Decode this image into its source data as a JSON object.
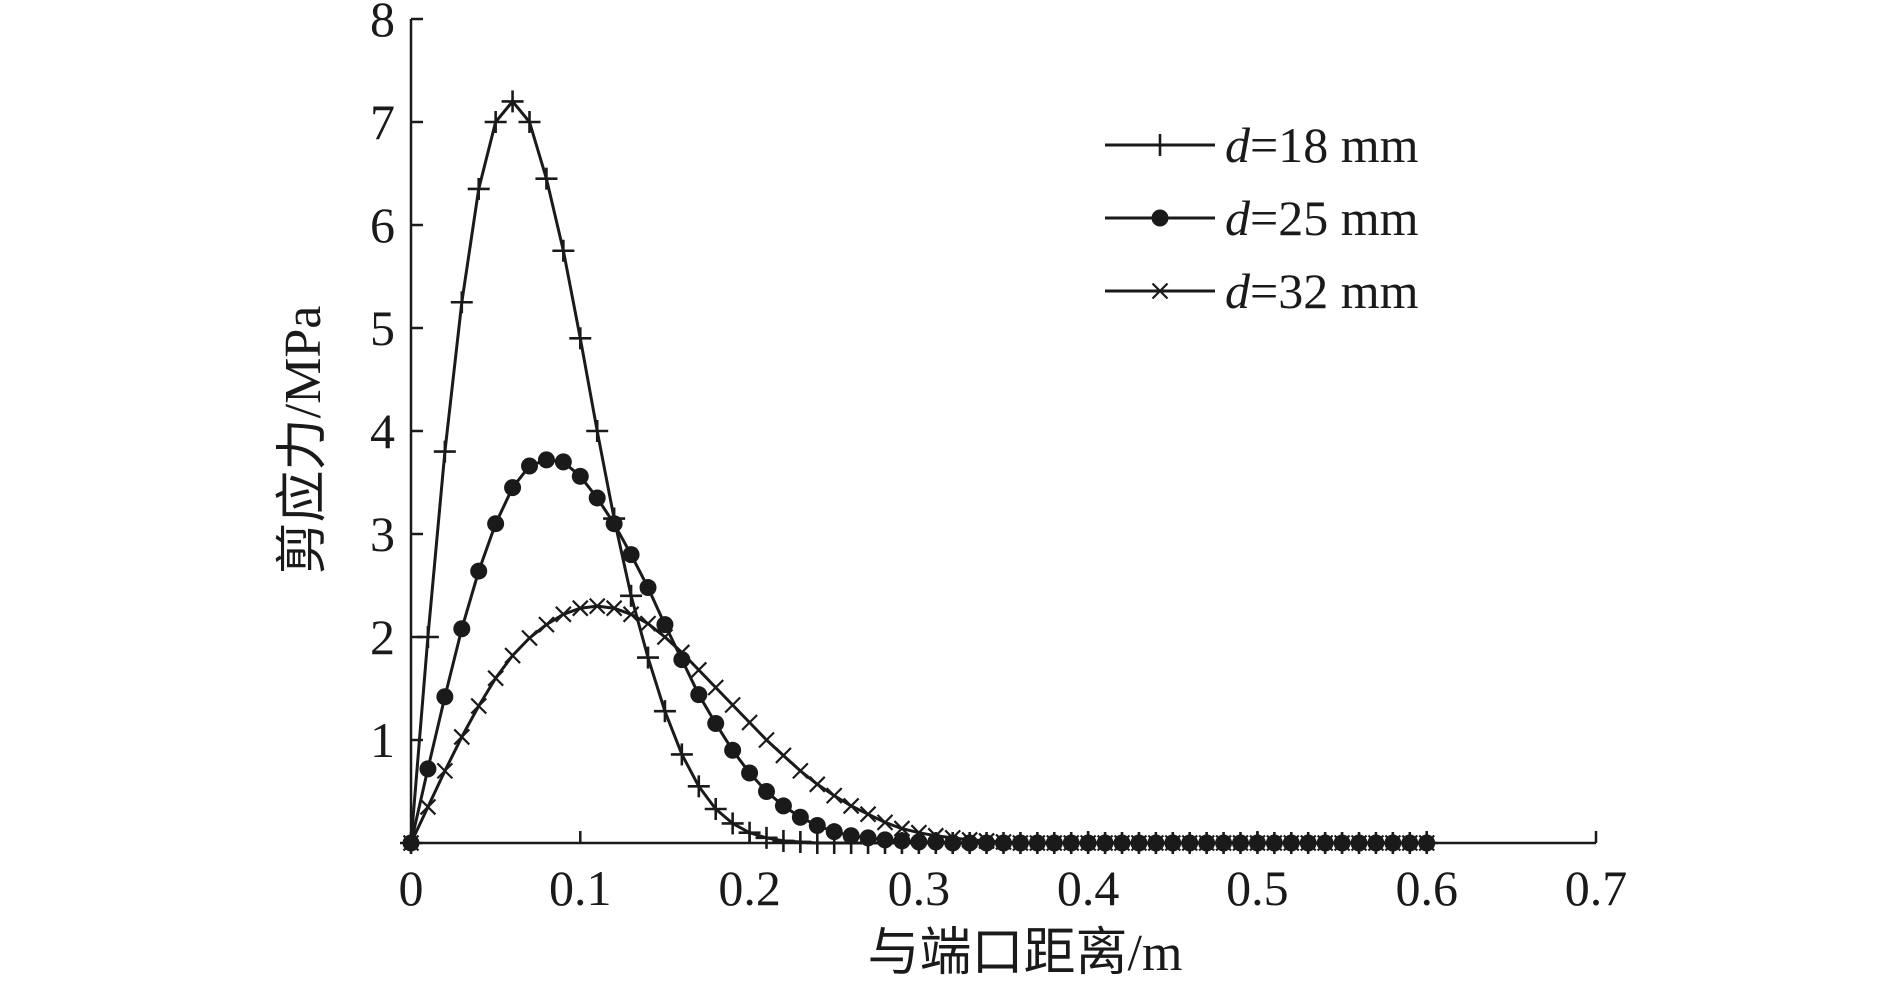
{
  "chart_data": {
    "type": "line",
    "title": "",
    "xlabel": "与端口距离/m",
    "ylabel": "剪应力/MPa",
    "xlim": [
      0,
      0.7
    ],
    "ylim": [
      0,
      8
    ],
    "x_ticks": [
      "0",
      "0.1",
      "0.2",
      "0.3",
      "0.4",
      "0.5",
      "0.6",
      "0.7"
    ],
    "y_ticks": [
      "1",
      "2",
      "3",
      "4",
      "5",
      "6",
      "7",
      "8"
    ],
    "grid": false,
    "legend_position": "top-right",
    "series": [
      {
        "name": "d=18 mm",
        "name_parts": {
          "var": "d",
          "rest": "=18 mm"
        },
        "marker": "plus",
        "color": "#1a1a1a",
        "x": [
          0.0,
          0.01,
          0.02,
          0.03,
          0.04,
          0.05,
          0.06,
          0.07,
          0.08,
          0.09,
          0.1,
          0.11,
          0.12,
          0.13,
          0.14,
          0.15,
          0.16,
          0.17,
          0.18,
          0.19,
          0.2,
          0.21,
          0.22,
          0.23,
          0.24,
          0.25,
          0.26,
          0.27,
          0.28,
          0.29,
          0.3,
          0.31,
          0.32,
          0.33,
          0.34,
          0.35,
          0.36,
          0.37,
          0.38,
          0.39,
          0.4,
          0.41,
          0.42,
          0.43,
          0.44,
          0.45,
          0.46,
          0.47,
          0.48,
          0.49,
          0.5,
          0.51,
          0.52,
          0.53,
          0.54,
          0.55,
          0.56,
          0.57,
          0.58,
          0.59,
          0.6
        ],
        "values": [
          0.0,
          2.0,
          3.8,
          5.25,
          6.35,
          7.0,
          7.2,
          7.0,
          6.45,
          5.75,
          4.9,
          4.0,
          3.15,
          2.4,
          1.8,
          1.28,
          0.86,
          0.55,
          0.33,
          0.19,
          0.1,
          0.05,
          0.02,
          0.01,
          0.0,
          0.0,
          0.0,
          0.0,
          0.0,
          0.0,
          0.0,
          0.0,
          0.0,
          0.0,
          0.0,
          0.0,
          0.0,
          0.0,
          0.0,
          0.0,
          0.0,
          0.0,
          0.0,
          0.0,
          0.0,
          0.0,
          0.0,
          0.0,
          0.0,
          0.0,
          0.0,
          0.0,
          0.0,
          0.0,
          0.0,
          0.0,
          0.0,
          0.0,
          0.0,
          0.0,
          0.0
        ]
      },
      {
        "name": "d=25 mm",
        "name_parts": {
          "var": "d",
          "rest": "=25 mm"
        },
        "marker": "circle",
        "color": "#1a1a1a",
        "x": [
          0.0,
          0.01,
          0.02,
          0.03,
          0.04,
          0.05,
          0.06,
          0.07,
          0.08,
          0.09,
          0.1,
          0.11,
          0.12,
          0.13,
          0.14,
          0.15,
          0.16,
          0.17,
          0.18,
          0.19,
          0.2,
          0.21,
          0.22,
          0.23,
          0.24,
          0.25,
          0.26,
          0.27,
          0.28,
          0.29,
          0.3,
          0.31,
          0.32,
          0.33,
          0.34,
          0.35,
          0.36,
          0.37,
          0.38,
          0.39,
          0.4,
          0.41,
          0.42,
          0.43,
          0.44,
          0.45,
          0.46,
          0.47,
          0.48,
          0.49,
          0.5,
          0.51,
          0.52,
          0.53,
          0.54,
          0.55,
          0.56,
          0.57,
          0.58,
          0.59,
          0.6
        ],
        "values": [
          0.0,
          0.72,
          1.42,
          2.08,
          2.64,
          3.1,
          3.45,
          3.66,
          3.72,
          3.7,
          3.56,
          3.35,
          3.1,
          2.8,
          2.48,
          2.12,
          1.78,
          1.44,
          1.16,
          0.9,
          0.68,
          0.5,
          0.36,
          0.25,
          0.17,
          0.11,
          0.07,
          0.05,
          0.03,
          0.02,
          0.01,
          0.01,
          0.0,
          0.0,
          0.0,
          0.0,
          0.0,
          0.0,
          0.0,
          0.0,
          0.0,
          0.0,
          0.0,
          0.0,
          0.0,
          0.0,
          0.0,
          0.0,
          0.0,
          0.0,
          0.0,
          0.0,
          0.0,
          0.0,
          0.0,
          0.0,
          0.0,
          0.0,
          0.0,
          0.0,
          0.0
        ]
      },
      {
        "name": "d=32 mm",
        "name_parts": {
          "var": "d",
          "rest": "=32 mm"
        },
        "marker": "x",
        "color": "#1a1a1a",
        "x": [
          0.0,
          0.01,
          0.02,
          0.03,
          0.04,
          0.05,
          0.06,
          0.07,
          0.08,
          0.09,
          0.1,
          0.11,
          0.12,
          0.13,
          0.14,
          0.15,
          0.16,
          0.17,
          0.18,
          0.19,
          0.2,
          0.21,
          0.22,
          0.23,
          0.24,
          0.25,
          0.26,
          0.27,
          0.28,
          0.29,
          0.3,
          0.31,
          0.32,
          0.33,
          0.34,
          0.35,
          0.36,
          0.37,
          0.38,
          0.39,
          0.4,
          0.41,
          0.42,
          0.43,
          0.44,
          0.45,
          0.46,
          0.47,
          0.48,
          0.49,
          0.5,
          0.51,
          0.52,
          0.53,
          0.54,
          0.55,
          0.56,
          0.57,
          0.58,
          0.59,
          0.6
        ],
        "values": [
          0.0,
          0.35,
          0.7,
          1.03,
          1.33,
          1.6,
          1.82,
          1.99,
          2.12,
          2.22,
          2.28,
          2.3,
          2.28,
          2.22,
          2.13,
          2.0,
          1.85,
          1.68,
          1.51,
          1.34,
          1.17,
          1.0,
          0.85,
          0.7,
          0.57,
          0.46,
          0.36,
          0.28,
          0.2,
          0.14,
          0.1,
          0.07,
          0.05,
          0.03,
          0.02,
          0.01,
          0.0,
          0.0,
          0.0,
          0.0,
          0.0,
          0.0,
          0.0,
          0.0,
          0.0,
          0.0,
          0.0,
          0.0,
          0.0,
          0.0,
          0.0,
          0.0,
          0.0,
          0.0,
          0.0,
          0.0,
          0.0,
          0.0,
          0.0,
          0.0,
          0.0
        ]
      }
    ]
  }
}
